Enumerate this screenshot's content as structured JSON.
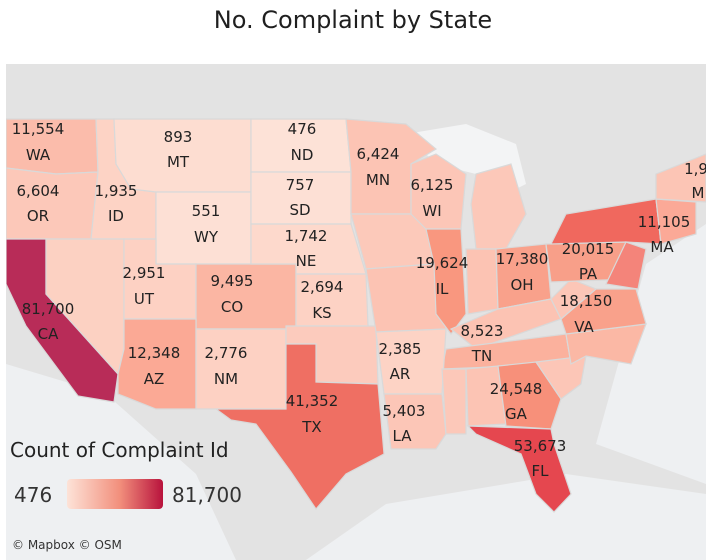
{
  "title": "No. Complaint by State",
  "legend": {
    "title": "Count of Complaint Id",
    "min": "476",
    "max": "81,700",
    "color_low": "#fde3d8",
    "color_high": "#b8123c"
  },
  "attribution": "© Mapbox © OSM",
  "states": [
    {
      "abbr": "WA",
      "value": "11,554"
    },
    {
      "abbr": "OR",
      "value": "6,604"
    },
    {
      "abbr": "CA",
      "value": "81,700"
    },
    {
      "abbr": "ID",
      "value": "1,935"
    },
    {
      "abbr": "MT",
      "value": "893"
    },
    {
      "abbr": "WY",
      "value": "551"
    },
    {
      "abbr": "UT",
      "value": "2,951"
    },
    {
      "abbr": "CO",
      "value": "9,495"
    },
    {
      "abbr": "AZ",
      "value": "12,348"
    },
    {
      "abbr": "NM",
      "value": "2,776"
    },
    {
      "abbr": "ND",
      "value": "476"
    },
    {
      "abbr": "SD",
      "value": "757"
    },
    {
      "abbr": "NE",
      "value": "1,742"
    },
    {
      "abbr": "KS",
      "value": "2,694"
    },
    {
      "abbr": "TX",
      "value": "41,352"
    },
    {
      "abbr": "MN",
      "value": "6,424"
    },
    {
      "abbr": "WI",
      "value": "6,125"
    },
    {
      "abbr": "IL",
      "value": "19,624"
    },
    {
      "abbr": "AR",
      "value": "2,385"
    },
    {
      "abbr": "LA",
      "value": "5,403"
    },
    {
      "abbr": "OH",
      "value": "17,380"
    },
    {
      "abbr": "TN",
      "value": "8,523"
    },
    {
      "abbr": "GA",
      "value": "24,548"
    },
    {
      "abbr": "FL",
      "value": "53,673"
    },
    {
      "abbr": "PA",
      "value": "20,015"
    },
    {
      "abbr": "VA",
      "value": "18,150"
    },
    {
      "abbr": "MA",
      "value": "11,105"
    },
    {
      "abbr": "M",
      "value": "1,9"
    }
  ]
}
